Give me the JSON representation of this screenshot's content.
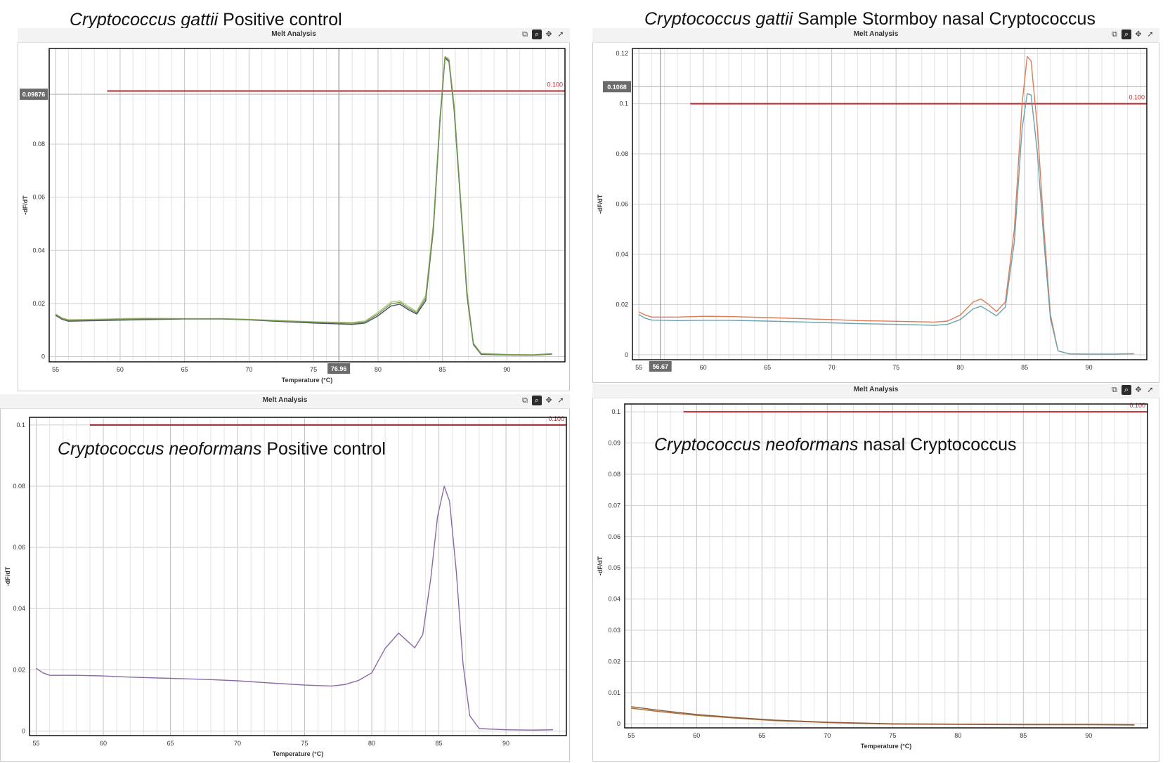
{
  "captions": [
    {
      "species": "Cryptococcus gattii",
      "rest": " Positive control"
    },
    {
      "species": "Cryptococcus gattii",
      "rest": " Sample Stormboy nasal Cryptococcus"
    },
    {
      "species": "Cryptococcus neoformans",
      "rest": " Positive control"
    },
    {
      "species": "Cryptococcus neoformans",
      "rest": " nasal Cryptococcus"
    }
  ],
  "panels": [
    {
      "title": "Melt Analysis"
    },
    {
      "title": "Melt Analysis"
    },
    {
      "title": "Melt Analysis"
    },
    {
      "title": "Melt Analysis"
    }
  ],
  "icons": [
    "copy-icon",
    "zoom-icon",
    "pan-icon",
    "pointer-icon"
  ],
  "chart_data": [
    {
      "type": "line",
      "xlabel": "Temperature (°C)",
      "ylabel": "-dF/dT",
      "xlim": [
        54.5,
        94.5
      ],
      "ylim": [
        -0.002,
        0.116
      ],
      "x_ticks": [
        55,
        60,
        65,
        70,
        75,
        80,
        85,
        90
      ],
      "y_ticks": [
        0,
        0.02,
        0.04,
        0.06,
        0.08
      ],
      "y_tick_labels": [
        "0",
        "0.02",
        "0.04",
        "0.06",
        "0.08"
      ],
      "threshold": {
        "value": 0.1,
        "label": "0.100",
        "x_start": 59,
        "color": "#c1272d"
      },
      "cursor_x": {
        "value": 76.96,
        "label": "76.96"
      },
      "cursor_y": {
        "value": 0.09876,
        "label": "0.09876"
      },
      "grid": true,
      "series": [
        {
          "color": "#b9c27e",
          "points": [
            [
              55,
              0.016
            ],
            [
              55.5,
              0.0145
            ],
            [
              56,
              0.0139
            ],
            [
              58,
              0.014
            ],
            [
              60,
              0.0143
            ],
            [
              62,
              0.0144
            ],
            [
              65,
              0.0143
            ],
            [
              68,
              0.0143
            ],
            [
              70,
              0.014
            ],
            [
              72,
              0.0136
            ],
            [
              75,
              0.0131
            ],
            [
              78,
              0.0128
            ],
            [
              79,
              0.0134
            ],
            [
              80,
              0.0166
            ],
            [
              81,
              0.0205
            ],
            [
              81.7,
              0.021
            ],
            [
              82.3,
              0.019
            ],
            [
              83,
              0.017
            ],
            [
              83.7,
              0.023
            ],
            [
              84.3,
              0.05
            ],
            [
              84.8,
              0.09
            ],
            [
              85.2,
              0.113
            ],
            [
              85.5,
              0.112
            ],
            [
              85.9,
              0.095
            ],
            [
              86.4,
              0.06
            ],
            [
              86.9,
              0.025
            ],
            [
              87.4,
              0.005
            ],
            [
              88,
              0.0012
            ],
            [
              90,
              0.0008
            ],
            [
              92,
              0.0007
            ],
            [
              93.5,
              0.0011
            ]
          ]
        },
        {
          "color": "#4a4a6a",
          "points": [
            [
              55,
              0.0155
            ],
            [
              55.5,
              0.014
            ],
            [
              56,
              0.0133
            ],
            [
              58,
              0.0135
            ],
            [
              60,
              0.0137
            ],
            [
              62,
              0.0139
            ],
            [
              65,
              0.0141
            ],
            [
              68,
              0.0141
            ],
            [
              70,
              0.0138
            ],
            [
              72,
              0.0133
            ],
            [
              75,
              0.0126
            ],
            [
              78,
              0.0121
            ],
            [
              79,
              0.0126
            ],
            [
              80,
              0.0153
            ],
            [
              81,
              0.019
            ],
            [
              81.7,
              0.0197
            ],
            [
              82.3,
              0.0178
            ],
            [
              83,
              0.016
            ],
            [
              83.7,
              0.021
            ],
            [
              84.3,
              0.048
            ],
            [
              84.8,
              0.088
            ],
            [
              85.2,
              0.1125
            ],
            [
              85.5,
              0.111
            ],
            [
              85.9,
              0.093
            ],
            [
              86.4,
              0.058
            ],
            [
              86.9,
              0.023
            ],
            [
              87.4,
              0.0045
            ],
            [
              88,
              0.0008
            ],
            [
              90,
              0.0006
            ],
            [
              92,
              0.0005
            ],
            [
              93.5,
              0.0009
            ]
          ]
        },
        {
          "color": "#6d9a4e",
          "points": [
            [
              55,
              0.0158
            ],
            [
              55.5,
              0.0143
            ],
            [
              56,
              0.0136
            ],
            [
              58,
              0.0138
            ],
            [
              60,
              0.014
            ],
            [
              62,
              0.0142
            ],
            [
              65,
              0.0142
            ],
            [
              68,
              0.0142
            ],
            [
              70,
              0.0139
            ],
            [
              72,
              0.0135
            ],
            [
              75,
              0.0129
            ],
            [
              78,
              0.0125
            ],
            [
              79,
              0.013
            ],
            [
              80,
              0.016
            ],
            [
              81,
              0.0198
            ],
            [
              81.7,
              0.0204
            ],
            [
              82.3,
              0.0184
            ],
            [
              83,
              0.0165
            ],
            [
              83.7,
              0.022
            ],
            [
              84.3,
              0.049
            ],
            [
              84.8,
              0.089
            ],
            [
              85.2,
              0.1128
            ],
            [
              85.5,
              0.1115
            ],
            [
              85.9,
              0.094
            ],
            [
              86.4,
              0.059
            ],
            [
              86.9,
              0.024
            ],
            [
              87.4,
              0.0048
            ],
            [
              88,
              0.001
            ],
            [
              90,
              0.0007
            ],
            [
              92,
              0.0006
            ],
            [
              93.5,
              0.001
            ]
          ]
        }
      ]
    },
    {
      "type": "line",
      "xlabel": "",
      "ylabel": "-dF/dT",
      "xlim": [
        54.5,
        94.5
      ],
      "ylim": [
        -0.002,
        0.122
      ],
      "x_ticks": [
        55,
        60,
        65,
        70,
        75,
        80,
        85,
        90
      ],
      "y_ticks": [
        0,
        0.02,
        0.04,
        0.06,
        0.08,
        0.1,
        0.12
      ],
      "y_tick_labels": [
        "0",
        "0.02",
        "0.04",
        "0.06",
        "0.08",
        "0.1",
        "0.12"
      ],
      "threshold": {
        "value": 0.1,
        "label": "0.100",
        "x_start": 59,
        "color": "#c1272d"
      },
      "cursor_x": {
        "value": 56.67,
        "label": "56.67"
      },
      "cursor_y": {
        "value": 0.1068,
        "label": "0.1068"
      },
      "grid": true,
      "series": [
        {
          "color": "#e07a56",
          "points": [
            [
              55,
              0.017
            ],
            [
              55.5,
              0.0158
            ],
            [
              56,
              0.015
            ],
            [
              58,
              0.015
            ],
            [
              60,
              0.0153
            ],
            [
              62,
              0.0152
            ],
            [
              65,
              0.0148
            ],
            [
              68,
              0.0143
            ],
            [
              70,
              0.014
            ],
            [
              72,
              0.0136
            ],
            [
              75,
              0.0133
            ],
            [
              78,
              0.013
            ],
            [
              79,
              0.0134
            ],
            [
              80,
              0.0158
            ],
            [
              81,
              0.021
            ],
            [
              81.6,
              0.0222
            ],
            [
              82.2,
              0.02
            ],
            [
              82.8,
              0.0172
            ],
            [
              83.5,
              0.021
            ],
            [
              84.2,
              0.05
            ],
            [
              84.8,
              0.1
            ],
            [
              85.2,
              0.1188
            ],
            [
              85.5,
              0.117
            ],
            [
              86,
              0.09
            ],
            [
              86.5,
              0.05
            ],
            [
              87,
              0.016
            ],
            [
              87.6,
              0.0015
            ],
            [
              88.5,
              0.0003
            ],
            [
              90,
              0.0002
            ],
            [
              92,
              0.0002
            ],
            [
              93.5,
              0.0004
            ]
          ]
        },
        {
          "color": "#6aa3ad",
          "points": [
            [
              55,
              0.016
            ],
            [
              55.5,
              0.0145
            ],
            [
              56,
              0.0138
            ],
            [
              58,
              0.0136
            ],
            [
              60,
              0.0137
            ],
            [
              62,
              0.0137
            ],
            [
              65,
              0.0134
            ],
            [
              68,
              0.013
            ],
            [
              70,
              0.0127
            ],
            [
              72,
              0.0124
            ],
            [
              75,
              0.0121
            ],
            [
              78,
              0.0117
            ],
            [
              79,
              0.0121
            ],
            [
              80,
              0.014
            ],
            [
              81,
              0.0183
            ],
            [
              81.6,
              0.0193
            ],
            [
              82.2,
              0.0175
            ],
            [
              82.8,
              0.0155
            ],
            [
              83.5,
              0.019
            ],
            [
              84.2,
              0.045
            ],
            [
              84.8,
              0.09
            ],
            [
              85.2,
              0.104
            ],
            [
              85.5,
              0.1035
            ],
            [
              86,
              0.08
            ],
            [
              86.5,
              0.045
            ],
            [
              87,
              0.0145
            ],
            [
              87.6,
              0.0015
            ],
            [
              88.5,
              0.0003
            ],
            [
              90,
              0.0002
            ],
            [
              92,
              0.0002
            ],
            [
              93.5,
              0.0004
            ]
          ]
        }
      ]
    },
    {
      "type": "line",
      "xlabel": "Temperature (°C)",
      "ylabel": "-dF/dT",
      "xlim": [
        54.5,
        94.5
      ],
      "ylim": [
        -0.0015,
        0.1025
      ],
      "x_ticks": [
        55,
        60,
        65,
        70,
        75,
        80,
        85,
        90
      ],
      "y_ticks": [
        0,
        0.02,
        0.04,
        0.06,
        0.08,
        0.1
      ],
      "y_tick_labels": [
        "0",
        "0.02",
        "0.04",
        "0.06",
        "0.08",
        "0.1"
      ],
      "threshold": {
        "value": 0.1,
        "label": "0.100",
        "x_start": 59,
        "color": "#9a2632"
      },
      "grid": true,
      "series": [
        {
          "color": "#8a6aa6",
          "points": [
            [
              55,
              0.0205
            ],
            [
              55.5,
              0.019
            ],
            [
              56,
              0.0182
            ],
            [
              58,
              0.0182
            ],
            [
              60,
              0.018
            ],
            [
              62,
              0.0176
            ],
            [
              65,
              0.0172
            ],
            [
              68,
              0.0168
            ],
            [
              70,
              0.0164
            ],
            [
              72,
              0.0158
            ],
            [
              75,
              0.015
            ],
            [
              77,
              0.0147
            ],
            [
              78,
              0.0152
            ],
            [
              79,
              0.0165
            ],
            [
              80,
              0.019
            ],
            [
              81,
              0.027
            ],
            [
              82,
              0.032
            ],
            [
              82.5,
              0.03
            ],
            [
              83.2,
              0.0272
            ],
            [
              83.8,
              0.0315
            ],
            [
              84.4,
              0.05
            ],
            [
              84.9,
              0.07
            ],
            [
              85.4,
              0.08
            ],
            [
              85.8,
              0.075
            ],
            [
              86.3,
              0.052
            ],
            [
              86.8,
              0.022
            ],
            [
              87.3,
              0.005
            ],
            [
              88,
              0.0008
            ],
            [
              90,
              0.0004
            ],
            [
              92,
              0.0003
            ],
            [
              93.5,
              0.0004
            ]
          ]
        }
      ]
    },
    {
      "type": "line",
      "xlabel": "Temperature (°C)",
      "ylabel": "-dF/dT",
      "xlim": [
        54.5,
        94.5
      ],
      "ylim": [
        -0.0013,
        0.1025
      ],
      "x_ticks": [
        55,
        60,
        65,
        70,
        75,
        80,
        85,
        90
      ],
      "y_ticks": [
        0,
        0.01,
        0.02,
        0.03,
        0.04,
        0.05,
        0.06,
        0.07,
        0.08,
        0.09,
        0.1
      ],
      "y_tick_labels": [
        "0",
        "0.01",
        "0.02",
        "0.03",
        "0.04",
        "0.05",
        "0.06",
        "0.07",
        "0.08",
        "0.09",
        "0.1"
      ],
      "threshold": {
        "value": 0.1,
        "label": "0.100",
        "x_start": 59,
        "color": "#c1272d"
      },
      "grid": true,
      "series": [
        {
          "color": "#a8743c",
          "points": [
            [
              55,
              0.005
            ],
            [
              57,
              0.004
            ],
            [
              60,
              0.0027
            ],
            [
              63,
              0.0018
            ],
            [
              66,
              0.001
            ],
            [
              70,
              0.0004
            ],
            [
              75,
              -0.0001
            ],
            [
              80,
              -0.0002
            ],
            [
              85,
              -0.0003
            ],
            [
              90,
              -0.0003
            ],
            [
              93.5,
              -0.0004
            ]
          ]
        },
        {
          "color": "#8e5a3a",
          "points": [
            [
              55,
              0.0055
            ],
            [
              57,
              0.0044
            ],
            [
              60,
              0.003
            ],
            [
              63,
              0.002
            ],
            [
              66,
              0.0012
            ],
            [
              70,
              0.0005
            ],
            [
              75,
              0.0
            ],
            [
              80,
              -0.0001
            ],
            [
              85,
              -0.0002
            ],
            [
              90,
              -0.0002
            ],
            [
              93.5,
              -0.0003
            ]
          ]
        }
      ]
    }
  ]
}
